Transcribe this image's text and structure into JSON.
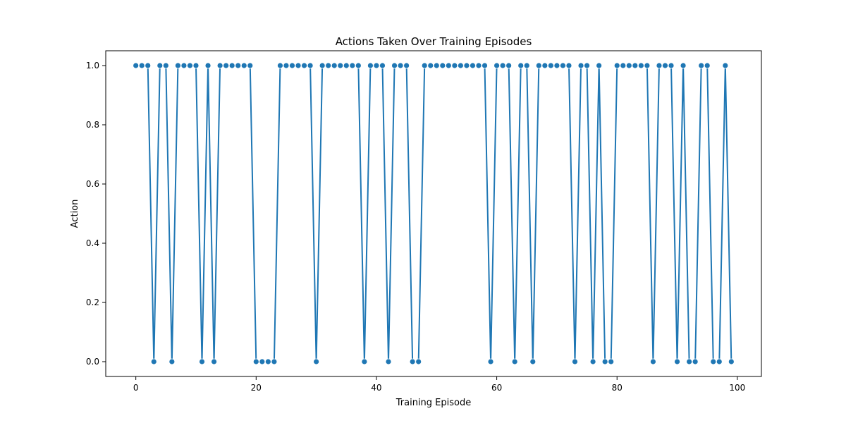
{
  "chart_data": {
    "type": "line",
    "title": "Actions Taken Over Training Episodes",
    "xlabel": "Training Episode",
    "ylabel": "Action",
    "xlim": [
      -5,
      104
    ],
    "ylim": [
      -0.05,
      1.05
    ],
    "xticks": [
      0,
      20,
      40,
      60,
      80,
      100
    ],
    "xtick_labels": [
      "0",
      "20",
      "40",
      "60",
      "80",
      "100"
    ],
    "yticks": [
      0.0,
      0.2,
      0.4,
      0.6,
      0.8,
      1.0
    ],
    "ytick_labels": [
      "0.0",
      "0.2",
      "0.4",
      "0.6",
      "0.8",
      "1.0"
    ],
    "grid": false,
    "color": "#1f77b4",
    "series": [
      {
        "marker": "circle",
        "x": [
          0,
          1,
          2,
          3,
          4,
          5,
          6,
          7,
          8,
          9,
          10,
          11,
          12,
          13,
          14,
          15,
          16,
          17,
          18,
          19,
          20,
          21,
          22,
          23,
          24,
          25,
          26,
          27,
          28,
          29,
          30,
          31,
          32,
          33,
          34,
          35,
          36,
          37,
          38,
          39,
          40,
          41,
          42,
          43,
          44,
          45,
          46,
          47,
          48,
          49,
          50,
          51,
          52,
          53,
          54,
          55,
          56,
          57,
          58,
          59,
          60,
          61,
          62,
          63,
          64,
          65,
          66,
          67,
          68,
          69,
          70,
          71,
          72,
          73,
          74,
          75,
          76,
          77,
          78,
          79,
          80,
          81,
          82,
          83,
          84,
          85,
          86,
          87,
          88,
          89,
          90,
          91,
          92,
          93,
          94,
          95,
          96,
          97,
          98,
          99
        ],
        "y": [
          1,
          1,
          1,
          0,
          1,
          1,
          0,
          1,
          1,
          1,
          1,
          0,
          1,
          0,
          1,
          1,
          1,
          1,
          1,
          1,
          0,
          0,
          0,
          0,
          1,
          1,
          1,
          1,
          1,
          1,
          0,
          1,
          1,
          1,
          1,
          1,
          1,
          1,
          0,
          1,
          1,
          1,
          0,
          1,
          1,
          1,
          0,
          0,
          1,
          1,
          1,
          1,
          1,
          1,
          1,
          1,
          1,
          1,
          1,
          0,
          1,
          1,
          1,
          0,
          1,
          1,
          0,
          1,
          1,
          1,
          1,
          1,
          1,
          0,
          1,
          1,
          0,
          1,
          0,
          0,
          1,
          1,
          1,
          1,
          1,
          1,
          0,
          1,
          1,
          1,
          0,
          1,
          0,
          0,
          1,
          1,
          0,
          0,
          1,
          0
        ]
      }
    ]
  }
}
